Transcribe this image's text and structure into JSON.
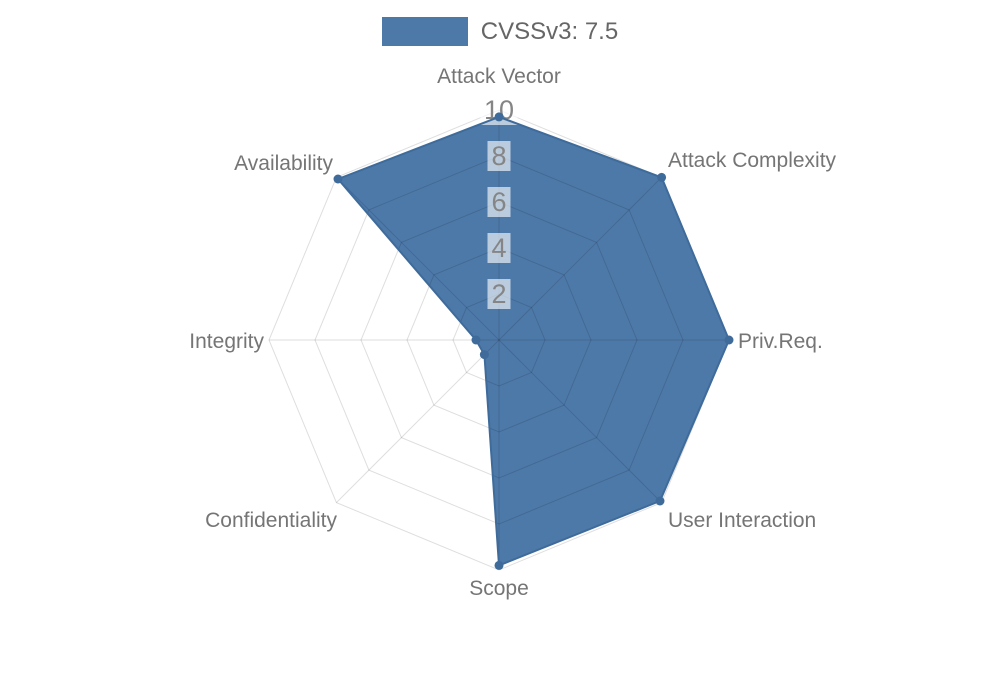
{
  "page": {
    "background": "#ffffff"
  },
  "legend": {
    "label": "CVSSv3: 7.5"
  },
  "chart_data": {
    "type": "radar",
    "title": "CVSSv3: 7.5",
    "axes": [
      "Attack Vector",
      "Attack Complexity",
      "Priv.Req.",
      "User Interaction",
      "Scope",
      "Confidentiality",
      "Integrity",
      "Availability"
    ],
    "series": [
      {
        "name": "CVSSv3: 7.5",
        "values": [
          9.7,
          10,
          10,
          9.9,
          9.8,
          0.9,
          1.0,
          9.9
        ]
      }
    ],
    "scale": {
      "min": 0,
      "max": 10,
      "ticks": [
        2,
        4,
        6,
        8,
        10
      ]
    },
    "grid": "on",
    "legend_position": "top",
    "colors": {
      "fill": "#4d79a9",
      "stroke": "#3f6b9b",
      "marker": "#3f6b9b",
      "grid_line": "rgba(0,0,0,0.13)",
      "axis_label": "#757575",
      "tick_label": "#858585",
      "tick_backdrop": "rgba(255,255,255,0.62)"
    }
  }
}
